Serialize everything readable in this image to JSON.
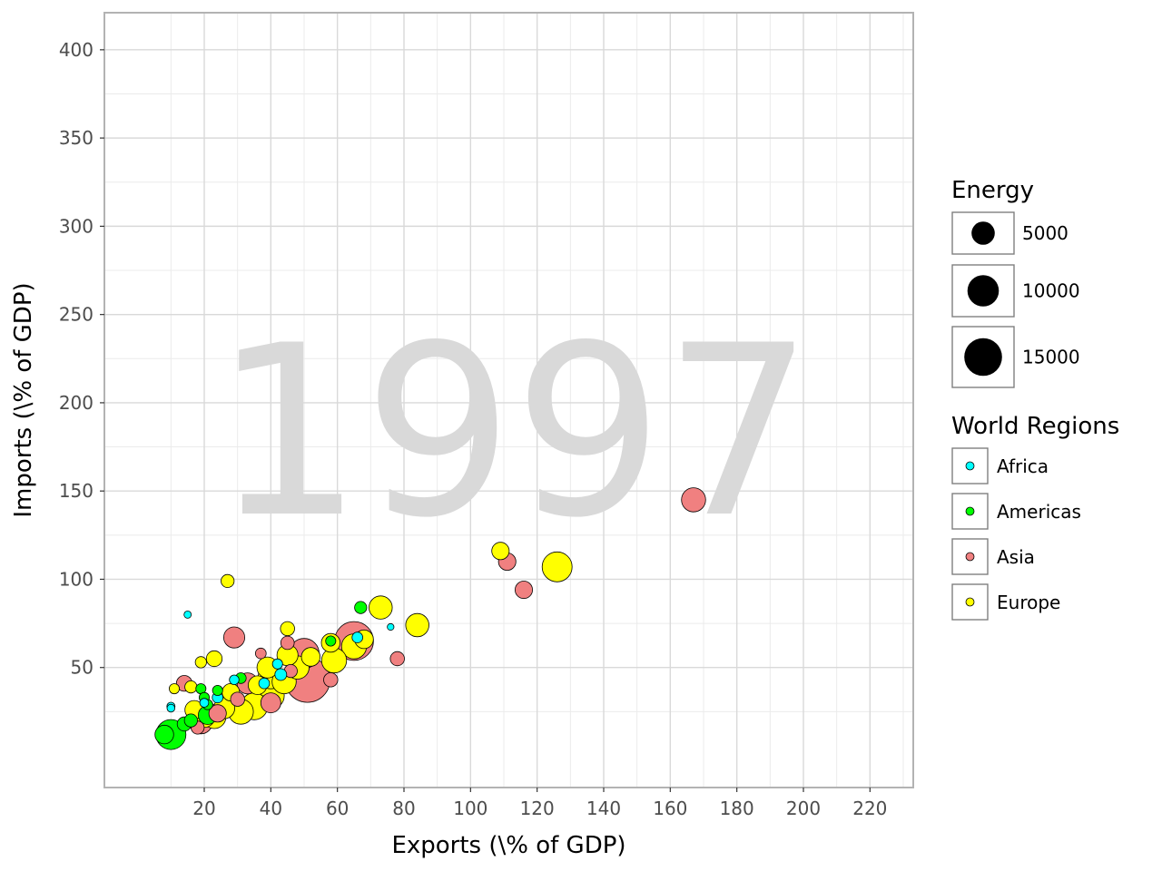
{
  "chart_data": {
    "type": "scatter",
    "title": "",
    "watermark": "1997",
    "xlabel": "Exports (\\% of GDP)",
    "ylabel": "Imports (\\% of GDP)",
    "xlim": [
      -10,
      233
    ],
    "ylim": [
      -18,
      421
    ],
    "x_ticks": [
      20,
      40,
      60,
      80,
      100,
      120,
      140,
      160,
      180,
      200,
      220
    ],
    "y_ticks": [
      50,
      100,
      150,
      200,
      250,
      300,
      350,
      400
    ],
    "grid": true,
    "legend_position": "right",
    "size_legend": {
      "title": "Energy",
      "items": [
        {
          "label": "5000",
          "value": 5000
        },
        {
          "label": "10000",
          "value": 10000
        },
        {
          "label": "15000",
          "value": 15000
        }
      ]
    },
    "color_legend": {
      "title": "World Regions",
      "items": [
        {
          "label": "Africa",
          "color": "#00ffff"
        },
        {
          "label": "Americas",
          "color": "#00ff00"
        },
        {
          "label": "Asia",
          "color": "#f08080"
        },
        {
          "label": "Europe",
          "color": "#ffff00"
        }
      ]
    },
    "series": [
      {
        "name": "Asia",
        "color": "#f08080",
        "points": [
          {
            "x": 51,
            "y": 43,
            "energy": 22000
          },
          {
            "x": 65,
            "y": 65,
            "energy": 16000
          },
          {
            "x": 50,
            "y": 58,
            "energy": 9000
          },
          {
            "x": 167,
            "y": 145,
            "energy": 5500
          },
          {
            "x": 111,
            "y": 110,
            "energy": 2500
          },
          {
            "x": 116,
            "y": 94,
            "energy": 2500
          },
          {
            "x": 29,
            "y": 67,
            "energy": 4000
          },
          {
            "x": 78,
            "y": 55,
            "energy": 1500
          },
          {
            "x": 33,
            "y": 41,
            "energy": 4000
          },
          {
            "x": 14,
            "y": 41,
            "energy": 2000
          },
          {
            "x": 45,
            "y": 64,
            "energy": 1300
          },
          {
            "x": 37,
            "y": 58,
            "energy": 700
          },
          {
            "x": 58,
            "y": 43,
            "energy": 1500
          },
          {
            "x": 19,
            "y": 19,
            "energy": 5000
          },
          {
            "x": 21,
            "y": 25,
            "energy": 3000
          },
          {
            "x": 30,
            "y": 32,
            "energy": 1500
          },
          {
            "x": 18,
            "y": 16,
            "energy": 1200
          },
          {
            "x": 40,
            "y": 30,
            "energy": 3500
          },
          {
            "x": 24,
            "y": 24,
            "energy": 2500
          },
          {
            "x": 46,
            "y": 48,
            "energy": 1200
          }
        ]
      },
      {
        "name": "Europe",
        "color": "#ffff00",
        "points": [
          {
            "x": 126,
            "y": 107,
            "energy": 9000
          },
          {
            "x": 109,
            "y": 116,
            "energy": 2500
          },
          {
            "x": 84,
            "y": 74,
            "energy": 5000
          },
          {
            "x": 73,
            "y": 84,
            "energy": 5000
          },
          {
            "x": 65,
            "y": 62,
            "energy": 6000
          },
          {
            "x": 59,
            "y": 54,
            "energy": 6000
          },
          {
            "x": 45,
            "y": 57,
            "energy": 4000
          },
          {
            "x": 48,
            "y": 50,
            "energy": 5000
          },
          {
            "x": 40,
            "y": 45,
            "energy": 6000
          },
          {
            "x": 39,
            "y": 50,
            "energy": 4000
          },
          {
            "x": 44,
            "y": 42,
            "energy": 5500
          },
          {
            "x": 40,
            "y": 34,
            "energy": 7000
          },
          {
            "x": 35,
            "y": 28,
            "energy": 7000
          },
          {
            "x": 31,
            "y": 25,
            "energy": 6000
          },
          {
            "x": 26,
            "y": 27,
            "energy": 4000
          },
          {
            "x": 23,
            "y": 22,
            "energy": 5000
          },
          {
            "x": 20,
            "y": 22,
            "energy": 4000
          },
          {
            "x": 17,
            "y": 26,
            "energy": 3000
          },
          {
            "x": 28,
            "y": 36,
            "energy": 2500
          },
          {
            "x": 23,
            "y": 55,
            "energy": 2000
          },
          {
            "x": 45,
            "y": 72,
            "energy": 1500
          },
          {
            "x": 27,
            "y": 99,
            "energy": 1200
          },
          {
            "x": 19,
            "y": 53,
            "energy": 800
          },
          {
            "x": 16,
            "y": 39,
            "energy": 1000
          },
          {
            "x": 11,
            "y": 38,
            "energy": 600
          },
          {
            "x": 68,
            "y": 66,
            "energy": 3000
          },
          {
            "x": 52,
            "y": 56,
            "energy": 3000
          },
          {
            "x": 36,
            "y": 40,
            "energy": 3000
          },
          {
            "x": 58,
            "y": 64,
            "energy": 3000
          }
        ]
      },
      {
        "name": "Americas",
        "color": "#00ff00",
        "points": [
          {
            "x": 10,
            "y": 12,
            "energy": 9000
          },
          {
            "x": 8,
            "y": 12,
            "energy": 3000
          },
          {
            "x": 21,
            "y": 23,
            "energy": 3000
          },
          {
            "x": 16,
            "y": 20,
            "energy": 1200
          },
          {
            "x": 19,
            "y": 38,
            "energy": 600
          },
          {
            "x": 20,
            "y": 33,
            "energy": 600
          },
          {
            "x": 24,
            "y": 37,
            "energy": 600
          },
          {
            "x": 58,
            "y": 65,
            "energy": 600
          },
          {
            "x": 67,
            "y": 84,
            "energy": 1000
          },
          {
            "x": 31,
            "y": 44,
            "energy": 700
          },
          {
            "x": 14,
            "y": 18,
            "energy": 1500
          },
          {
            "x": 21,
            "y": 29,
            "energy": 600
          }
        ]
      },
      {
        "name": "Africa",
        "color": "#00ffff",
        "points": [
          {
            "x": 15,
            "y": 80,
            "energy": 200
          },
          {
            "x": 76,
            "y": 73,
            "energy": 150
          },
          {
            "x": 66,
            "y": 67,
            "energy": 700
          },
          {
            "x": 10,
            "y": 28,
            "energy": 300
          },
          {
            "x": 24,
            "y": 33,
            "energy": 700
          },
          {
            "x": 29,
            "y": 43,
            "energy": 500
          },
          {
            "x": 38,
            "y": 41,
            "energy": 700
          },
          {
            "x": 43,
            "y": 46,
            "energy": 900
          },
          {
            "x": 42,
            "y": 52,
            "energy": 600
          },
          {
            "x": 10,
            "y": 27,
            "energy": 250
          },
          {
            "x": 20,
            "y": 30,
            "energy": 400
          }
        ]
      }
    ]
  }
}
